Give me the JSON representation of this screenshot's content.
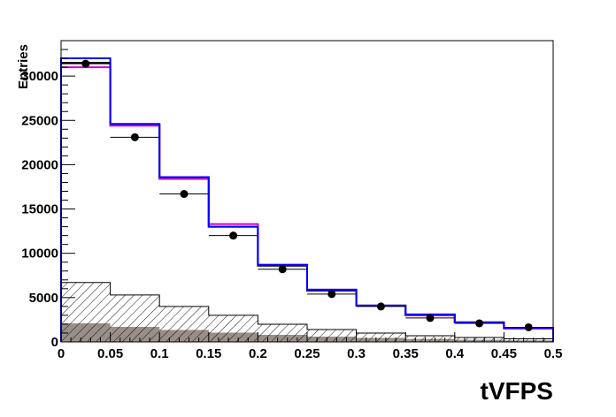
{
  "chart_data": {
    "type": "bar",
    "xlabel": "tVFPS",
    "ylabel": "Entries",
    "xlim": [
      0,
      0.5
    ],
    "ylim": [
      0,
      34000
    ],
    "bin_edges": [
      0,
      0.05,
      0.1,
      0.15,
      0.2,
      0.25,
      0.3,
      0.35,
      0.4,
      0.45,
      0.5
    ],
    "x_ticks": [
      0,
      0.05,
      0.1,
      0.15,
      0.2,
      0.25,
      0.3,
      0.35,
      0.4,
      0.45,
      0.5
    ],
    "x_tick_labels": [
      "0",
      "0.05",
      "0.1",
      "0.15",
      "0.2",
      "0.25",
      "0.3",
      "0.35",
      "0.4",
      "0.45",
      "0.5"
    ],
    "y_ticks": [
      0,
      5000,
      10000,
      15000,
      20000,
      25000,
      30000
    ],
    "y_tick_labels": [
      "0",
      "5000",
      "10000",
      "15000",
      "20000",
      "25000",
      "30000"
    ],
    "grid": false,
    "series": [
      {
        "style": "filled-gray",
        "color": "#9a8f88",
        "values": [
          2100,
          1700,
          1350,
          1050,
          800,
          600,
          450,
          330,
          240,
          170
        ]
      },
      {
        "style": "hatched",
        "color": "#000000",
        "values": [
          6700,
          5300,
          4000,
          3000,
          2000,
          1400,
          1000,
          700,
          500,
          350
        ]
      },
      {
        "style": "step",
        "color": "#000000",
        "values": [
          31500,
          24500,
          18600,
          13000,
          8600,
          5800,
          4100,
          3000,
          2200,
          1550
        ]
      },
      {
        "style": "step",
        "color": "#cc00cc",
        "values": [
          31000,
          24400,
          18400,
          13300,
          8700,
          5900,
          4100,
          3000,
          2200,
          1500
        ]
      },
      {
        "style": "step",
        "color": "#0000ff",
        "values": [
          32000,
          24600,
          18600,
          13000,
          8700,
          5900,
          4100,
          3100,
          2200,
          1600
        ]
      },
      {
        "style": "points",
        "color": "#000000",
        "x": [
          0.025,
          0.075,
          0.125,
          0.175,
          0.225,
          0.275,
          0.325,
          0.375,
          0.425,
          0.475
        ],
        "values": [
          31400,
          23100,
          16700,
          12000,
          8200,
          5400,
          4000,
          2700,
          2100,
          1650
        ]
      }
    ]
  }
}
